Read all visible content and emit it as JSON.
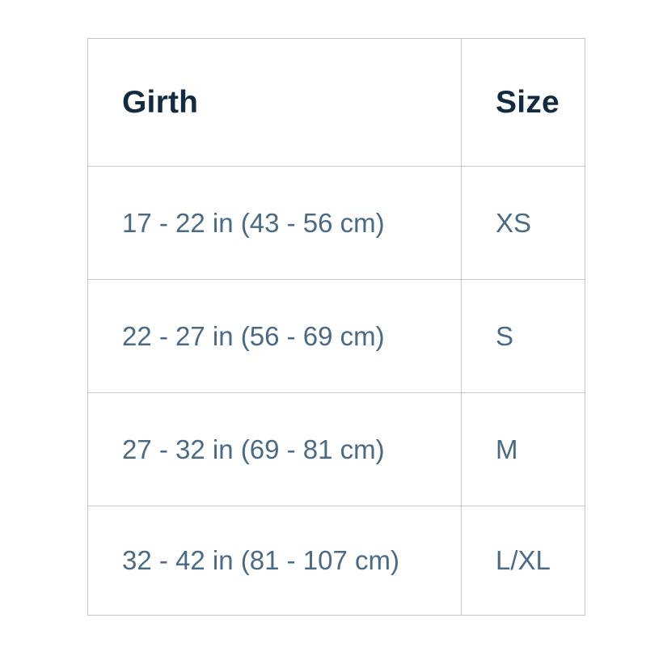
{
  "table": {
    "columns": [
      {
        "label": "Girth"
      },
      {
        "label": "Size"
      }
    ],
    "rows": [
      {
        "girth": "17 - 22 in (43 - 56 cm)",
        "size": "XS"
      },
      {
        "girth": "22 - 27 in (56 - 69 cm)",
        "size": "S"
      },
      {
        "girth": "27 - 32 in (69 - 81 cm)",
        "size": "M"
      },
      {
        "girth": "32 - 42 in (81 - 107 cm)",
        "size": "L/XL"
      }
    ],
    "colors": {
      "header_text": "#132b41",
      "body_text": "#4a6a85",
      "border": "#c6c6c6",
      "background": "#ffffff"
    }
  }
}
